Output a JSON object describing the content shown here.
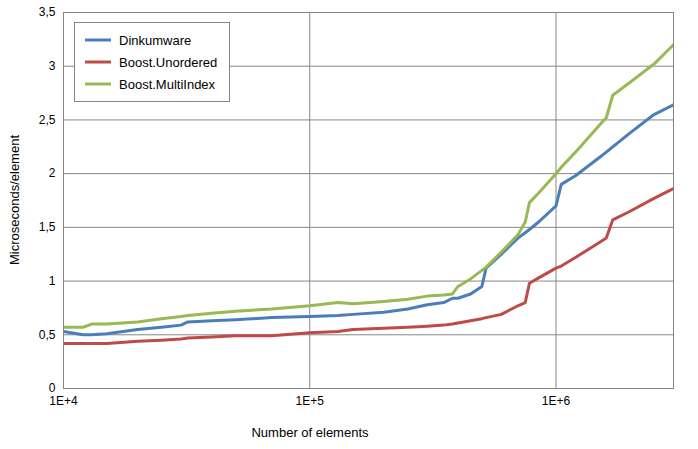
{
  "chart_data": {
    "type": "line",
    "x_label": "Number of elements",
    "y_label": "Microseconds/element",
    "log": "x",
    "grid": true,
    "legend": "top-left",
    "xlim": [
      10000,
      3000000
    ],
    "xticks": [
      {
        "value": 10000,
        "label": "1E+4"
      },
      {
        "value": 100000,
        "label": "1E+5"
      },
      {
        "value": 1000000,
        "label": "1E+6"
      }
    ],
    "ylim": [
      0,
      3.5
    ],
    "yticks": [
      0,
      {
        "value": 0.5,
        "label": "0,5"
      },
      1,
      {
        "value": 1.5,
        "label": "1,5"
      },
      2,
      {
        "value": 2.5,
        "label": "2,5"
      },
      3,
      {
        "value": 3.5,
        "label": "3,5"
      }
    ],
    "x": [
      10000,
      12000,
      13000,
      15000,
      20000,
      25000,
      30000,
      32000,
      40000,
      50000,
      70000,
      100000,
      130000,
      150000,
      200000,
      250000,
      300000,
      350000,
      380000,
      400000,
      450000,
      500000,
      520000,
      600000,
      700000,
      750000,
      780000,
      850000,
      1000000,
      1050000,
      1200000,
      1500000,
      1600000,
      1700000,
      2000000,
      2500000,
      3000000
    ],
    "series": [
      {
        "name": "Dinkumware",
        "color": "#4a7ebb",
        "values": [
          0.53,
          0.5,
          0.5,
          0.51,
          0.55,
          0.57,
          0.59,
          0.62,
          0.63,
          0.64,
          0.66,
          0.67,
          0.68,
          0.69,
          0.71,
          0.74,
          0.78,
          0.8,
          0.84,
          0.84,
          0.88,
          0.95,
          1.12,
          1.25,
          1.4,
          1.45,
          1.48,
          1.55,
          1.7,
          1.9,
          1.98,
          2.15,
          2.2,
          2.25,
          2.38,
          2.55,
          2.64
        ]
      },
      {
        "name": "Boost.Unordered",
        "color": "#be4b48",
        "values": [
          0.42,
          0.42,
          0.42,
          0.42,
          0.44,
          0.45,
          0.46,
          0.47,
          0.48,
          0.49,
          0.49,
          0.52,
          0.53,
          0.55,
          0.56,
          0.57,
          0.58,
          0.59,
          0.6,
          0.61,
          0.63,
          0.65,
          0.66,
          0.69,
          0.77,
          0.8,
          0.98,
          1.03,
          1.12,
          1.14,
          1.22,
          1.36,
          1.4,
          1.57,
          1.65,
          1.77,
          1.86
        ]
      },
      {
        "name": "Boost.MultiIndex",
        "color": "#98b954",
        "values": [
          0.57,
          0.57,
          0.6,
          0.6,
          0.62,
          0.65,
          0.67,
          0.68,
          0.7,
          0.72,
          0.74,
          0.77,
          0.8,
          0.79,
          0.81,
          0.83,
          0.86,
          0.87,
          0.88,
          0.95,
          1.02,
          1.1,
          1.13,
          1.27,
          1.43,
          1.55,
          1.73,
          1.82,
          2.0,
          2.06,
          2.2,
          2.45,
          2.52,
          2.73,
          2.85,
          3.02,
          3.2
        ]
      }
    ]
  }
}
